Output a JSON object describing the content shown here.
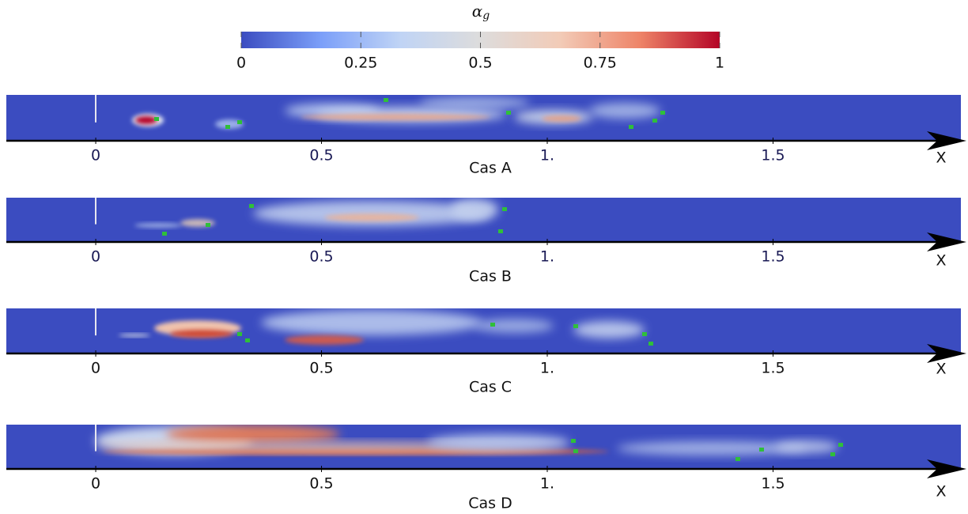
{
  "colorbar": {
    "label": "α",
    "subscript": "g",
    "lim": [
      0,
      1
    ],
    "ticks": [
      0,
      0.25,
      0.5,
      0.75,
      1
    ],
    "colors": [
      "#3b4cc0",
      "#7b9ff9",
      "#c0d4f5",
      "#dddcdc",
      "#f2cbb7",
      "#ee8468",
      "#b40426"
    ]
  },
  "x_axis": {
    "label": "X",
    "xlim": [
      -0.198,
      1.916
    ],
    "xticks": [
      0,
      0.5,
      {
        "value": 1,
        "label": "1."
      },
      1.5
    ]
  },
  "panels": [
    {
      "title": "Cas A"
    },
    {
      "title": "Cas B"
    },
    {
      "title": "Cas C"
    },
    {
      "title": "Cas D"
    }
  ]
}
